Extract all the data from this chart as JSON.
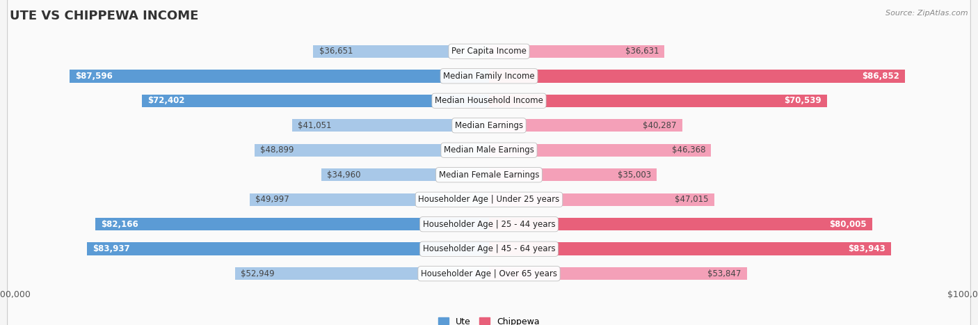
{
  "title": "UTE VS CHIPPEWA INCOME",
  "source": "Source: ZipAtlas.com",
  "categories": [
    "Per Capita Income",
    "Median Family Income",
    "Median Household Income",
    "Median Earnings",
    "Median Male Earnings",
    "Median Female Earnings",
    "Householder Age | Under 25 years",
    "Householder Age | 25 - 44 years",
    "Householder Age | 45 - 64 years",
    "Householder Age | Over 65 years"
  ],
  "ute_values": [
    36651,
    87596,
    72402,
    41051,
    48899,
    34960,
    49997,
    82166,
    83937,
    52949
  ],
  "chippewa_values": [
    36631,
    86852,
    70539,
    40287,
    46368,
    35003,
    47015,
    80005,
    83943,
    53847
  ],
  "ute_labels": [
    "$36,651",
    "$87,596",
    "$72,402",
    "$41,051",
    "$48,899",
    "$34,960",
    "$49,997",
    "$82,166",
    "$83,937",
    "$52,949"
  ],
  "chippewa_labels": [
    "$36,631",
    "$86,852",
    "$70,539",
    "$40,287",
    "$46,368",
    "$35,003",
    "$47,015",
    "$80,005",
    "$83,943",
    "$53,847"
  ],
  "max_value": 100000,
  "ute_color_light": "#a8c8e8",
  "chippewa_color_light": "#f4a0b8",
  "ute_color_strong": "#5b9bd5",
  "chippewa_color_strong": "#e8607a",
  "bg_light": "#f0f0f2",
  "bg_dark": "#e4e4e8",
  "title_fontsize": 13,
  "label_fontsize": 8.5,
  "bar_height": 0.52,
  "threshold_strong": 60000
}
